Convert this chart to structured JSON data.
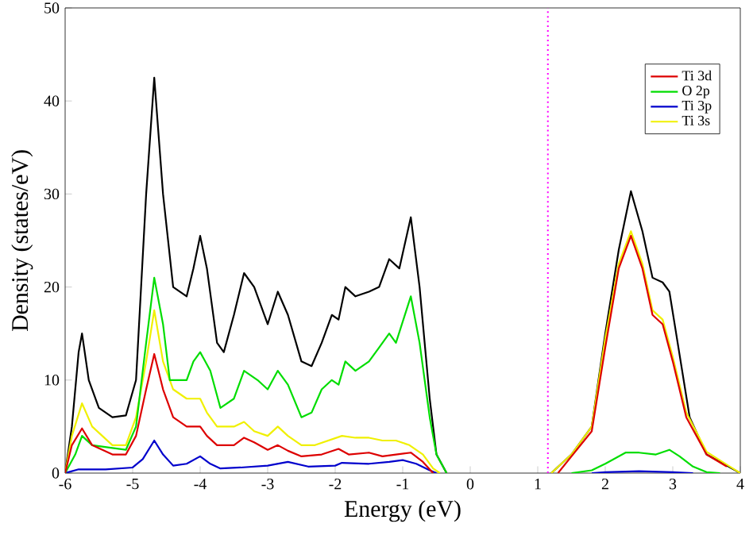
{
  "chart_data": {
    "type": "line",
    "xlabel": "Energy (eV)",
    "ylabel": "Density (states/eV)",
    "xlim": [
      -6,
      4
    ],
    "ylim": [
      0,
      50
    ],
    "xticks": [
      -6,
      -5,
      -4,
      -3,
      -2,
      -1,
      0,
      1,
      2,
      3,
      4
    ],
    "yticks": [
      0,
      10,
      20,
      30,
      40,
      50
    ],
    "grid": false,
    "legend": "top right",
    "marker": "none",
    "line_style": "solid",
    "ref_lines": [
      {
        "axis": "x",
        "value": 1.15,
        "color": "#ff00ff",
        "line_style": "dotted"
      }
    ],
    "series": [
      {
        "color": "#000000",
        "x": [
          -6,
          -5.9,
          -5.8,
          -5.75,
          -5.65,
          -5.5,
          -5.3,
          -5.1,
          -4.95,
          -4.8,
          -4.68,
          -4.55,
          -4.4,
          -4.3,
          -4.2,
          -4.1,
          -4.0,
          -3.9,
          -3.75,
          -3.65,
          -3.5,
          -3.35,
          -3.2,
          -3.0,
          -2.85,
          -2.7,
          -2.5,
          -2.35,
          -2.2,
          -2.05,
          -1.95,
          -1.85,
          -1.7,
          -1.5,
          -1.35,
          -1.2,
          -1.05,
          -0.88,
          -0.75,
          -0.6,
          -0.5,
          -0.35,
          0.5,
          1.2,
          1.5,
          1.8,
          2.0,
          2.2,
          2.38,
          2.55,
          2.7,
          2.85,
          2.95,
          3.05,
          3.25,
          3.5,
          3.8,
          4
        ],
        "values": [
          0,
          5,
          13,
          15,
          10,
          7,
          6,
          6.2,
          10,
          30,
          42.5,
          30,
          20,
          19.5,
          19,
          22,
          25.5,
          22,
          14,
          13,
          17,
          21.5,
          20,
          16,
          19.5,
          17,
          12,
          11.5,
          14,
          17,
          16.5,
          20,
          19,
          19.5,
          20,
          23,
          22,
          27.5,
          20,
          8,
          2,
          0,
          null,
          0,
          2,
          5,
          15,
          24,
          30.3,
          26,
          21,
          20.5,
          19.5,
          15,
          6,
          2,
          0.8,
          0
        ]
      },
      {
        "name": "Ti 3d",
        "color": "#dd0000",
        "x": [
          -6,
          -5.9,
          -5.75,
          -5.6,
          -5.3,
          -5.1,
          -4.95,
          -4.8,
          -4.68,
          -4.55,
          -4.4,
          -4.2,
          -4.0,
          -3.9,
          -3.75,
          -3.5,
          -3.35,
          -3.2,
          -3.0,
          -2.85,
          -2.7,
          -2.5,
          -2.2,
          -1.95,
          -1.8,
          -1.5,
          -1.3,
          -1.1,
          -0.88,
          -0.7,
          -0.55,
          0.5,
          1.3,
          1.5,
          1.8,
          2.0,
          2.2,
          2.38,
          2.55,
          2.7,
          2.85,
          3.0,
          3.2,
          3.5,
          3.8
        ],
        "values": [
          0,
          3,
          4.8,
          3,
          2,
          2,
          4,
          9,
          12.8,
          9,
          6,
          5,
          5,
          4,
          3,
          3,
          3.8,
          3.3,
          2.5,
          3,
          2.4,
          1.8,
          2,
          2.6,
          2,
          2.2,
          1.8,
          2,
          2.2,
          1.2,
          0,
          null,
          0,
          1.8,
          4.5,
          13.5,
          22,
          25.5,
          22,
          17,
          16,
          12,
          6,
          2,
          0.7
        ]
      },
      {
        "name": "O 2p",
        "color": "#00dd00",
        "x": [
          -6,
          -5.85,
          -5.75,
          -5.6,
          -5.3,
          -5.1,
          -4.95,
          -4.8,
          -4.68,
          -4.55,
          -4.45,
          -4.3,
          -4.2,
          -4.1,
          -4.0,
          -3.85,
          -3.7,
          -3.5,
          -3.35,
          -3.15,
          -3.0,
          -2.85,
          -2.7,
          -2.5,
          -2.35,
          -2.2,
          -2.05,
          -1.95,
          -1.85,
          -1.7,
          -1.5,
          -1.35,
          -1.2,
          -1.1,
          -0.88,
          -0.75,
          -0.6,
          -0.5,
          -0.35,
          0.5,
          1.5,
          1.8,
          2.0,
          2.3,
          2.5,
          2.75,
          2.95,
          3.1,
          3.3,
          3.5,
          3.7
        ],
        "values": [
          0,
          2,
          4,
          3,
          2.7,
          2.5,
          5,
          14,
          21,
          16,
          10,
          10,
          10,
          12,
          13,
          11,
          7,
          8,
          11,
          10,
          9,
          11,
          9.5,
          6,
          6.5,
          9,
          10,
          9.5,
          12,
          11,
          12,
          13.5,
          15,
          14,
          19,
          14,
          6,
          2,
          0,
          null,
          0,
          0.3,
          1,
          2.2,
          2.2,
          2,
          2.5,
          1.8,
          0.7,
          0.1,
          0
        ]
      },
      {
        "name": "Ti 3p",
        "color": "#0000cc",
        "x": [
          -6,
          -5.8,
          -5.4,
          -5.0,
          -4.85,
          -4.68,
          -4.55,
          -4.4,
          -4.2,
          -4.0,
          -3.85,
          -3.7,
          -3.4,
          -3.0,
          -2.7,
          -2.4,
          -2.0,
          -1.9,
          -1.5,
          -1.2,
          -1.0,
          -0.8,
          -0.6,
          -0.5,
          0.5,
          1.8,
          2.0,
          2.5,
          3.0,
          3.3
        ],
        "values": [
          0,
          0.4,
          0.4,
          0.6,
          1.5,
          3.5,
          2,
          0.8,
          1,
          1.8,
          1,
          0.5,
          0.6,
          0.8,
          1.2,
          0.7,
          0.8,
          1.1,
          1,
          1.2,
          1.4,
          1,
          0.3,
          0,
          null,
          0,
          0.1,
          0.2,
          0.1,
          0
        ]
      },
      {
        "name": "Ti 3s",
        "color": "#f0f000",
        "x": [
          -6,
          -5.9,
          -5.75,
          -5.6,
          -5.3,
          -5.1,
          -4.95,
          -4.8,
          -4.68,
          -4.55,
          -4.4,
          -4.2,
          -4.0,
          -3.9,
          -3.75,
          -3.5,
          -3.35,
          -3.2,
          -3.0,
          -2.85,
          -2.7,
          -2.5,
          -2.3,
          -2.1,
          -1.9,
          -1.7,
          -1.5,
          -1.3,
          -1.1,
          -0.9,
          -0.7,
          -0.55,
          -0.45,
          0.5,
          1.2,
          1.5,
          1.8,
          2.0,
          2.2,
          2.38,
          2.55,
          2.7,
          2.85,
          3.0,
          3.2,
          3.5,
          3.8,
          4
        ],
        "values": [
          0,
          4,
          7.5,
          5,
          3,
          3,
          6,
          12,
          17.5,
          12,
          9,
          8,
          8,
          6.5,
          5,
          5,
          5.5,
          4.5,
          4,
          5,
          4,
          3,
          3,
          3.5,
          4,
          3.8,
          3.8,
          3.5,
          3.5,
          3,
          2,
          0.5,
          0,
          null,
          0,
          2,
          5,
          14.5,
          22.5,
          26,
          22.5,
          17.5,
          16.5,
          12.5,
          6.5,
          2.3,
          0.9,
          0
        ]
      }
    ]
  }
}
